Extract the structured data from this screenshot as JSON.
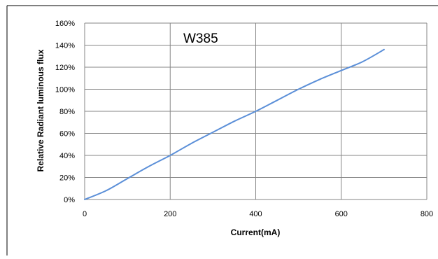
{
  "chart_data": {
    "type": "line",
    "title": "W385",
    "xlabel": "Current(mA)",
    "ylabel": "Relative Radiant luminous flux",
    "xlim": [
      0,
      800
    ],
    "ylim": [
      0,
      160
    ],
    "x_ticks": [
      0,
      200,
      400,
      600,
      800
    ],
    "x_tick_labels": [
      "0",
      "200",
      "400",
      "600",
      "800"
    ],
    "y_ticks": [
      0,
      20,
      40,
      60,
      80,
      100,
      120,
      140,
      160
    ],
    "y_tick_labels": [
      "0%",
      "20%",
      "40%",
      "60%",
      "80%",
      "100%",
      "120%",
      "140%",
      "160%"
    ],
    "grid": true,
    "colors": {
      "line": "#5b8fd8",
      "grid": "#868686",
      "axis": "#868686"
    },
    "series": [
      {
        "x": [
          0,
          50,
          100,
          150,
          200,
          250,
          300,
          350,
          400,
          450,
          500,
          550,
          600,
          650,
          700
        ],
        "y": [
          0,
          8,
          19,
          30,
          40,
          51,
          61,
          71,
          80,
          90,
          100,
          109,
          117,
          125,
          136
        ]
      }
    ]
  }
}
